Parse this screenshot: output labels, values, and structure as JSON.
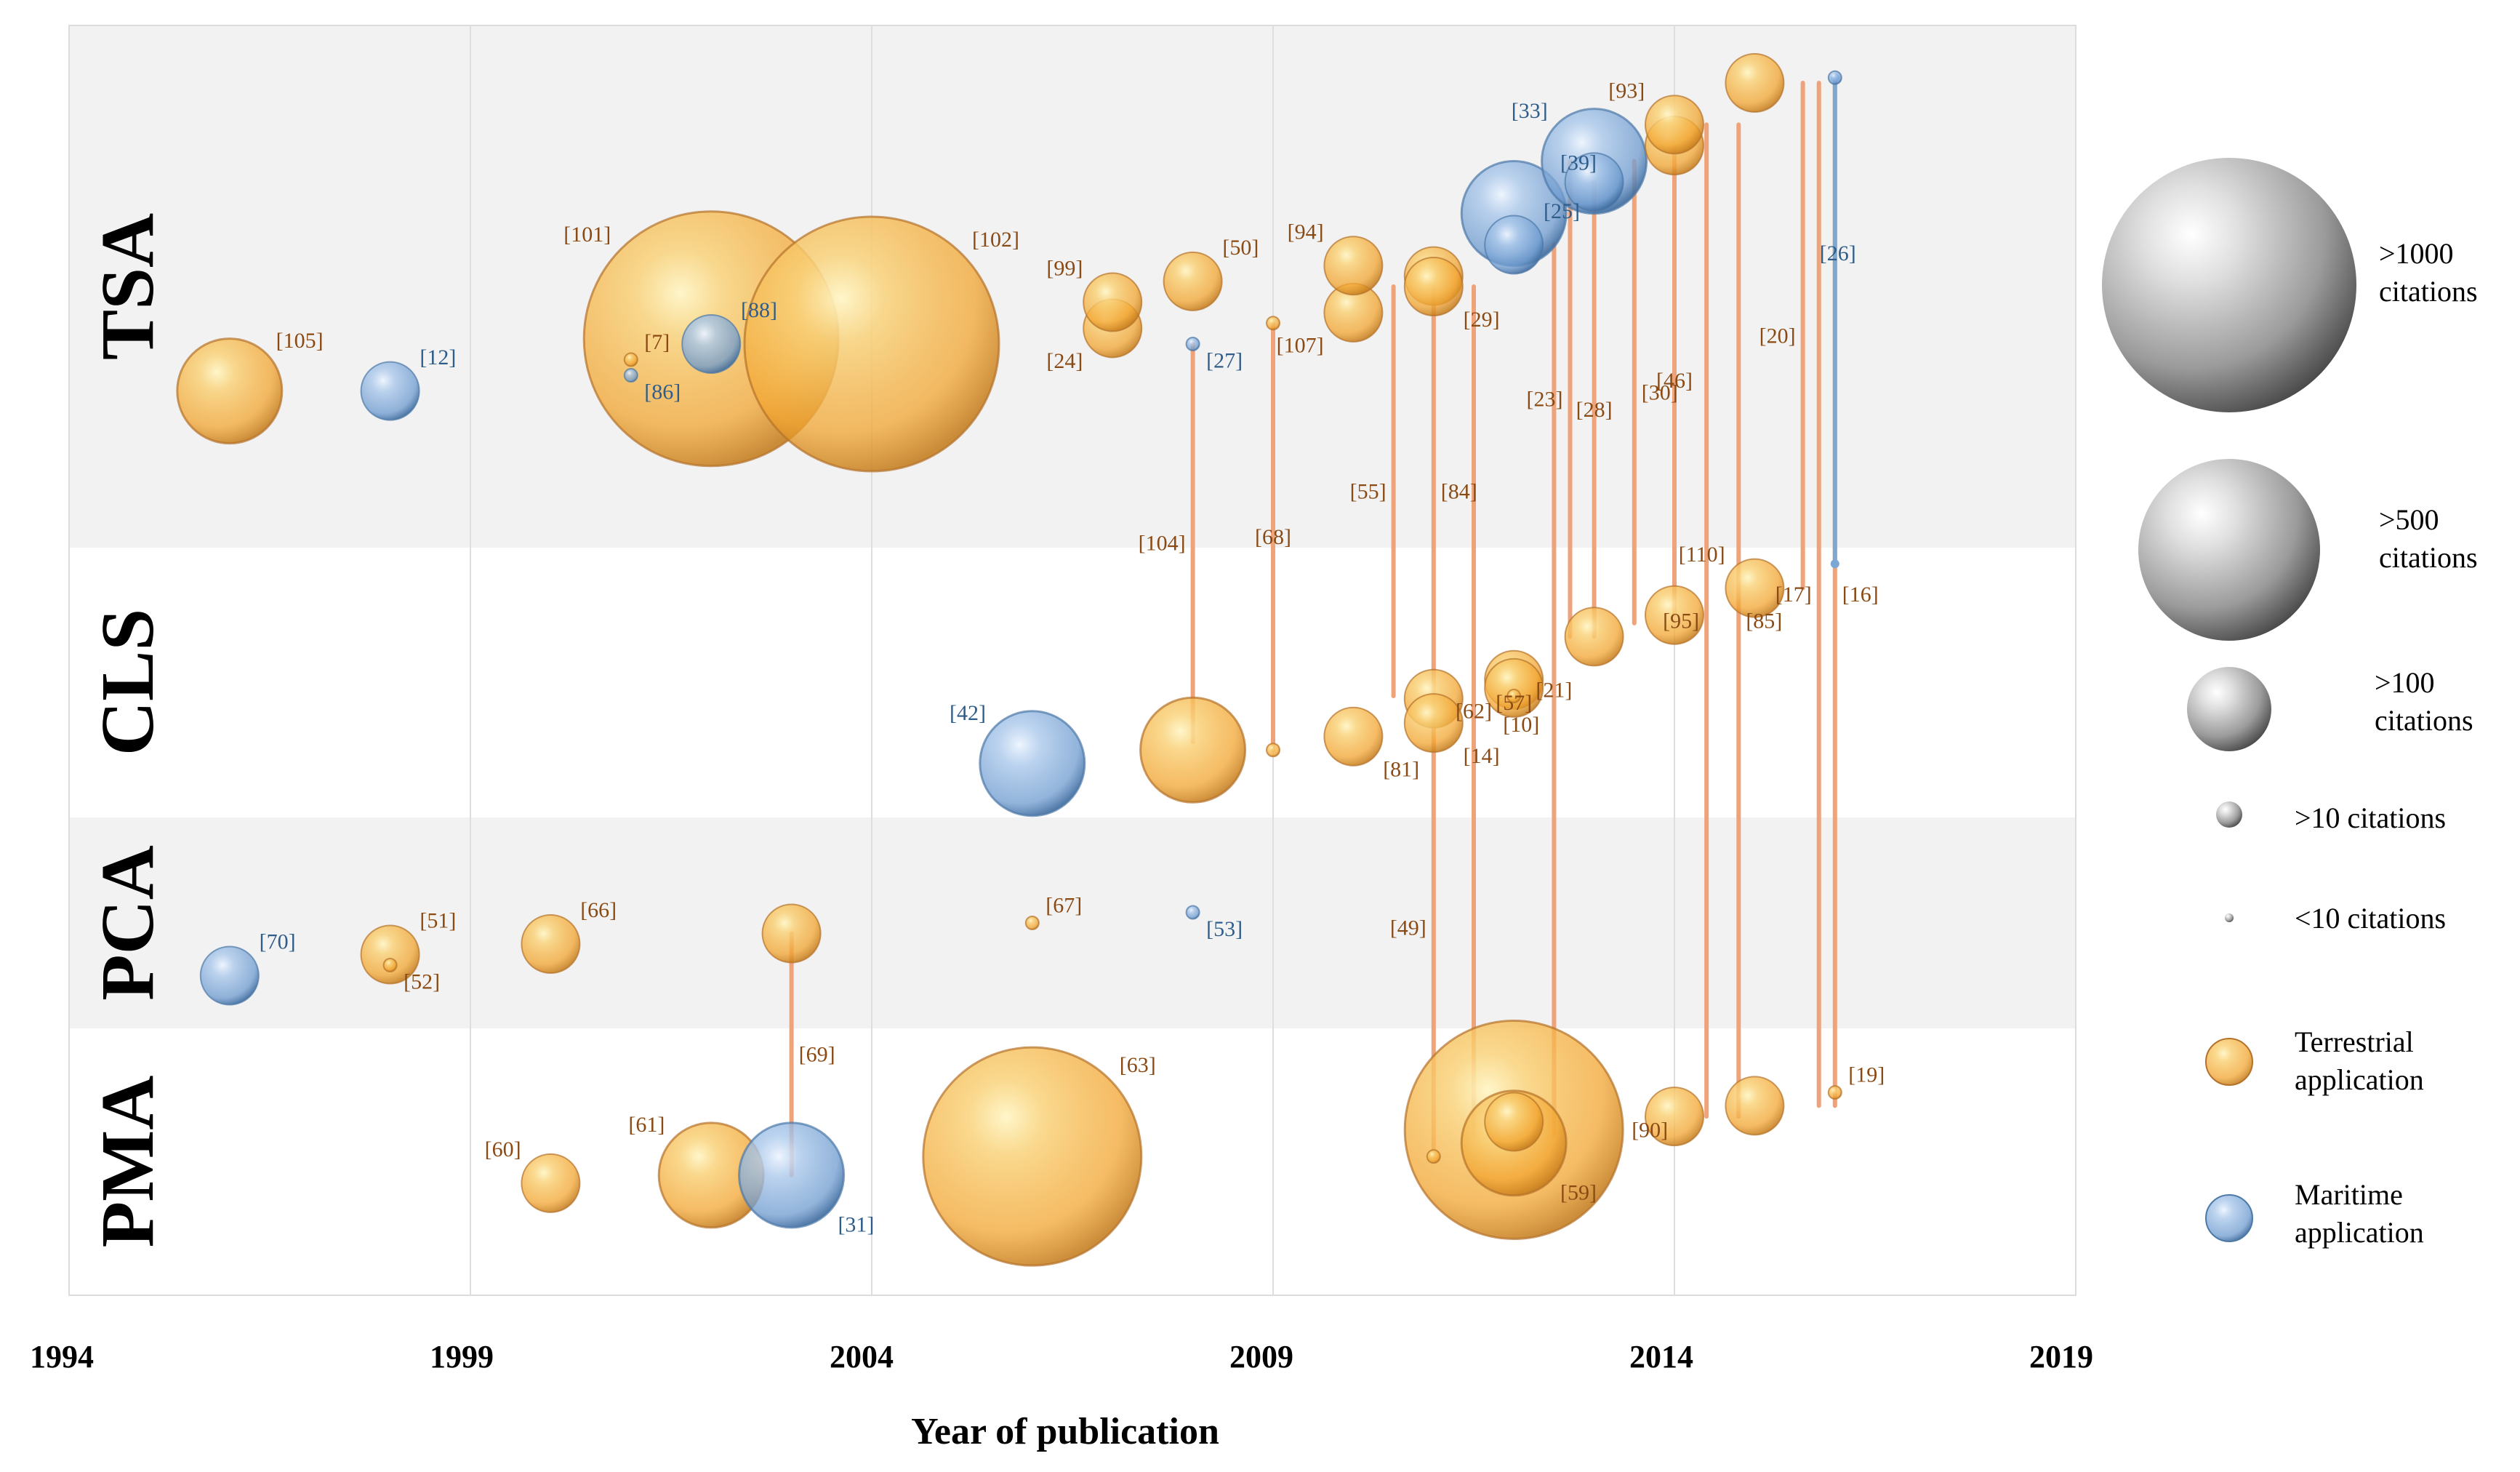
{
  "chart_data": {
    "type": "scatter",
    "subtype": "bubble",
    "xlabel": "Year of publication",
    "xlim": [
      1994,
      2019
    ],
    "x_ticks": [
      "1994",
      "1999",
      "2004",
      "2009",
      "2014",
      "2019"
    ],
    "categories": [
      "TSA",
      "CLS",
      "PCA",
      "PMA"
    ],
    "colors": {
      "terrestrial": "#f4a93a",
      "maritime": "#7ba7d4",
      "link_terrestrial": "#efa37a",
      "link_maritime": "#7fa8d0",
      "ref_terrestrial": "#8a4a14",
      "ref_maritime": "#2f5d8a"
    },
    "size_classes": {
      "huge": ">1000 citations",
      "large": ">500 citations",
      "medium": ">100 citations",
      "small": ">10 citations",
      "tiny": "<10 citations"
    },
    "points": [
      {
        "ref": "[105]",
        "year": 1996.0,
        "cat": "TSA",
        "off": 0.7,
        "size": "medium",
        "app": "terrestrial",
        "lab": "tr"
      },
      {
        "ref": "[12]",
        "year": 1998.0,
        "cat": "TSA",
        "off": 0.7,
        "size": "small",
        "app": "maritime",
        "lab": "tr"
      },
      {
        "ref": "[7]",
        "year": 2001.0,
        "cat": "TSA",
        "off": 0.64,
        "size": "tiny",
        "app": "terrestrial",
        "lab": "tr"
      },
      {
        "ref": "[86]",
        "year": 2001.0,
        "cat": "TSA",
        "off": 0.67,
        "size": "tiny",
        "app": "maritime",
        "lab": "br"
      },
      {
        "ref": "[101]",
        "year": 2002.0,
        "cat": "TSA",
        "off": 0.6,
        "size": "huge",
        "app": "terrestrial",
        "lab": "tl"
      },
      {
        "ref": "[88]",
        "year": 2002.0,
        "cat": "TSA",
        "off": 0.61,
        "size": "small",
        "app": "maritime",
        "lab": "tr"
      },
      {
        "ref": "[102]",
        "year": 2004.0,
        "cat": "TSA",
        "off": 0.61,
        "size": "huge",
        "app": "terrestrial",
        "lab": "tr"
      },
      {
        "ref": "[24]",
        "year": 2007.0,
        "cat": "TSA",
        "off": 0.58,
        "size": "small",
        "app": "terrestrial",
        "lab": "bl"
      },
      {
        "ref": "[99]",
        "year": 2007.0,
        "cat": "TSA",
        "off": 0.53,
        "size": "small",
        "app": "terrestrial",
        "lab": "tl"
      },
      {
        "ref": "[50]",
        "year": 2008.0,
        "cat": "TSA",
        "off": 0.49,
        "size": "small",
        "app": "terrestrial",
        "lab": "tr"
      },
      {
        "ref": "[27]",
        "year": 2008.0,
        "cat": "TSA",
        "off": 0.61,
        "size": "tiny",
        "app": "maritime",
        "lab": "br"
      },
      {
        "ref": "[107]",
        "year": 2010.0,
        "cat": "TSA",
        "off": 0.55,
        "size": "small",
        "app": "terrestrial",
        "lab": "bl"
      },
      {
        "ref": "[94]",
        "year": 2010.0,
        "cat": "TSA",
        "off": 0.46,
        "size": "small",
        "app": "terrestrial",
        "lab": "tl"
      },
      {
        "ref": "[29]",
        "year": 2011.0,
        "cat": "TSA",
        "off": 0.5,
        "size": "small",
        "app": "terrestrial",
        "lab": "br"
      },
      {
        "ref": "[39]",
        "year": 2012.0,
        "cat": "TSA",
        "off": 0.36,
        "size": "medium",
        "app": "maritime",
        "lab": "tr"
      },
      {
        "ref": "[25]",
        "year": 2012.0,
        "cat": "TSA",
        "off": 0.42,
        "size": "small",
        "app": "maritime",
        "lab": "tr"
      },
      {
        "ref": "[33]",
        "year": 2013.0,
        "cat": "TSA",
        "off": 0.26,
        "size": "medium",
        "app": "maritime",
        "lab": "tl"
      },
      {
        "ref": "[93]",
        "year": 2014.0,
        "cat": "TSA",
        "off": 0.19,
        "size": "small",
        "app": "terrestrial",
        "lab": "tl"
      },
      {
        "ref": "[26]",
        "year": 2016.0,
        "cat": "TSA",
        "off": 0.1,
        "size": "tiny",
        "app": "maritime",
        "lab": "rv"
      },
      {
        "ref": "[42]",
        "year": 2006.0,
        "cat": "CLS",
        "off": 0.8,
        "size": "medium",
        "app": "maritime",
        "lab": "tl"
      },
      {
        "ref": "[110]",
        "year": 2015.0,
        "cat": "CLS",
        "off": 0.15,
        "size": "small",
        "app": "terrestrial",
        "lab": "tl"
      },
      {
        "ref": "[14]",
        "year": 2011.0,
        "cat": "CLS",
        "off": 0.65,
        "size": "small",
        "app": "terrestrial",
        "lab": "br"
      },
      {
        "ref": "[57]",
        "year": 2012.0,
        "cat": "CLS",
        "off": 0.52,
        "size": "small",
        "app": "terrestrial",
        "lab": "in"
      },
      {
        "ref": "[10]",
        "year": 2012.0,
        "cat": "CLS",
        "off": 0.55,
        "size": "tiny",
        "app": "terrestrial",
        "lab": "bb"
      },
      {
        "ref": "[81]",
        "year": 2010.0,
        "cat": "CLS",
        "off": 0.7,
        "size": "small",
        "app": "terrestrial",
        "lab": "br"
      },
      {
        "ref": "[70]",
        "year": 1996.0,
        "cat": "PCA",
        "off": 0.75,
        "size": "small",
        "app": "maritime",
        "lab": "tr"
      },
      {
        "ref": "[51]",
        "year": 1998.0,
        "cat": "PCA",
        "off": 0.65,
        "size": "small",
        "app": "terrestrial",
        "lab": "tr"
      },
      {
        "ref": "[52]",
        "year": 1998.0,
        "cat": "PCA",
        "off": 0.7,
        "size": "tiny",
        "app": "terrestrial",
        "lab": "br"
      },
      {
        "ref": "[66]",
        "year": 2000.0,
        "cat": "PCA",
        "off": 0.6,
        "size": "small",
        "app": "terrestrial",
        "lab": "tr"
      },
      {
        "ref": "[67]",
        "year": 2006.0,
        "cat": "PCA",
        "off": 0.5,
        "size": "tiny",
        "app": "terrestrial",
        "lab": "tr"
      },
      {
        "ref": "[53]",
        "year": 2008.0,
        "cat": "PCA",
        "off": 0.45,
        "size": "tiny",
        "app": "maritime",
        "lab": "br"
      },
      {
        "ref": "[60]",
        "year": 2000.0,
        "cat": "PMA",
        "off": 0.58,
        "size": "small",
        "app": "terrestrial",
        "lab": "tl"
      },
      {
        "ref": "[61]",
        "year": 2002.0,
        "cat": "PMA",
        "off": 0.55,
        "size": "medium",
        "app": "terrestrial",
        "lab": "tl"
      },
      {
        "ref": "[31]",
        "year": 2003.0,
        "cat": "PMA",
        "off": 0.55,
        "size": "medium",
        "app": "maritime",
        "lab": "br"
      },
      {
        "ref": "[63]",
        "year": 2006.0,
        "cat": "PMA",
        "off": 0.48,
        "size": "large",
        "app": "terrestrial",
        "lab": "tr"
      },
      {
        "ref": "[90]",
        "year": 2012.0,
        "cat": "PMA",
        "off": 0.38,
        "size": "large",
        "app": "terrestrial",
        "lab": "r"
      },
      {
        "ref": "[59]",
        "year": 2012.0,
        "cat": "PMA",
        "off": 0.43,
        "size": "medium",
        "app": "terrestrial",
        "lab": "br"
      },
      {
        "ref": "[19]",
        "year": 2016.0,
        "cat": "PMA",
        "off": 0.24,
        "size": "tiny",
        "app": "terrestrial",
        "lab": "tr"
      }
    ],
    "extra_points": [
      {
        "year": 2003.0,
        "cat": "PCA",
        "off": 0.55,
        "size": "small",
        "app": "terrestrial"
      },
      {
        "year": 2008.0,
        "cat": "CLS",
        "off": 0.75,
        "size": "medium",
        "app": "terrestrial"
      },
      {
        "year": 2009.0,
        "cat": "TSA",
        "off": 0.57,
        "size": "tiny",
        "app": "terrestrial"
      },
      {
        "year": 2009.0,
        "cat": "CLS",
        "off": 0.75,
        "size": "tiny",
        "app": "terrestrial"
      },
      {
        "year": 2011.0,
        "cat": "TSA",
        "off": 0.48,
        "size": "small",
        "app": "terrestrial"
      },
      {
        "year": 2011.0,
        "cat": "CLS",
        "off": 0.56,
        "size": "small",
        "app": "terrestrial"
      },
      {
        "year": 2011.0,
        "cat": "PMA",
        "off": 0.48,
        "size": "tiny",
        "app": "terrestrial"
      },
      {
        "year": 2012.0,
        "cat": "CLS",
        "off": 0.49,
        "size": "small",
        "app": "terrestrial"
      },
      {
        "year": 2012.0,
        "cat": "PMA",
        "off": 0.35,
        "size": "small",
        "app": "terrestrial"
      },
      {
        "year": 2013.0,
        "cat": "TSA",
        "off": 0.3,
        "size": "small",
        "app": "maritime"
      },
      {
        "year": 2013.0,
        "cat": "CLS",
        "off": 0.33,
        "size": "small",
        "app": "terrestrial"
      },
      {
        "year": 2014.0,
        "cat": "TSA",
        "off": 0.23,
        "size": "small",
        "app": "terrestrial"
      },
      {
        "year": 2014.0,
        "cat": "CLS",
        "off": 0.25,
        "size": "small",
        "app": "terrestrial"
      },
      {
        "year": 2014.0,
        "cat": "PMA",
        "off": 0.33,
        "size": "small",
        "app": "terrestrial"
      },
      {
        "year": 2015.0,
        "cat": "TSA",
        "off": 0.11,
        "size": "small",
        "app": "terrestrial"
      },
      {
        "year": 2015.0,
        "cat": "PMA",
        "off": 0.29,
        "size": "small",
        "app": "terrestrial"
      }
    ],
    "links": [
      {
        "ref": "[104]",
        "year": 2008.0,
        "from": [
          "TSA",
          0.61
        ],
        "to": [
          "CLS",
          0.72
        ],
        "lab": "l"
      },
      {
        "ref": "[68]",
        "year": 2009.0,
        "from": [
          "TSA",
          0.57
        ],
        "to": [
          "CLS",
          0.75
        ],
        "lab": "c"
      },
      {
        "ref": "[69]",
        "year": 2003.0,
        "from": [
          "PCA",
          0.55
        ],
        "to": [
          "PMA",
          0.55
        ],
        "lab": "r"
      },
      {
        "ref": "[55]",
        "year": 2010.5,
        "from": [
          "TSA",
          0.5
        ],
        "to": [
          "CLS",
          0.55
        ],
        "lab": "l"
      },
      {
        "ref": "[84]",
        "year": 2011.0,
        "from": [
          "TSA",
          0.5
        ],
        "to": [
          "CLS",
          0.55
        ],
        "lab": "r"
      },
      {
        "ref": "[62]",
        "year": 2011.5,
        "from": [
          "TSA",
          0.5
        ],
        "to": [
          "PMA",
          0.4
        ],
        "lab": "c"
      },
      {
        "ref": "[49]",
        "year": 2011.0,
        "from": [
          "CLS",
          0.56
        ],
        "to": [
          "PMA",
          0.48
        ],
        "lab": "l"
      },
      {
        "ref": "[21]",
        "year": 2012.5,
        "from": [
          "TSA",
          0.42
        ],
        "to": [
          "PMA",
          0.4
        ],
        "lab": "c"
      },
      {
        "ref": "[23]",
        "year": 2012.7,
        "from": [
          "TSA",
          0.26
        ],
        "to": [
          "CLS",
          0.33
        ],
        "lab": "l"
      },
      {
        "ref": "[28]",
        "year": 2013.0,
        "from": [
          "TSA",
          0.3
        ],
        "to": [
          "CLS",
          0.33
        ],
        "lab": "c"
      },
      {
        "ref": "[30]",
        "year": 2013.5,
        "from": [
          "TSA",
          0.26
        ],
        "to": [
          "CLS",
          0.28
        ],
        "lab": "r"
      },
      {
        "ref": "[46]",
        "year": 2014.0,
        "from": [
          "TSA",
          0.23
        ],
        "to": [
          "CLS",
          0.25
        ],
        "lab": "c"
      },
      {
        "ref": "[85]",
        "year": 2014.8,
        "from": [
          "TSA",
          0.19
        ],
        "to": [
          "PMA",
          0.33
        ],
        "lab": "r"
      },
      {
        "ref": "[95]",
        "year": 2014.4,
        "from": [
          "TSA",
          0.19
        ],
        "to": [
          "PMA",
          0.33
        ],
        "lab": "l"
      },
      {
        "ref": "[20]",
        "year": 2015.6,
        "from": [
          "TSA",
          0.11
        ],
        "to": [
          "CLS",
          0.15
        ],
        "lab": "l"
      },
      {
        "ref": "[17]",
        "year": 2015.8,
        "from": [
          "TSA",
          0.11
        ],
        "to": [
          "PMA",
          0.29
        ],
        "lab": "l"
      },
      {
        "ref": "[16]",
        "year": 2016.0,
        "from": [
          "TSA",
          0.11
        ],
        "to": [
          "PMA",
          0.29
        ],
        "lab": "r"
      },
      {
        "ref": "[26]",
        "year": 2016.0,
        "from": [
          "TSA",
          0.1
        ],
        "to": [
          "CLS",
          0.06
        ],
        "lab": "none",
        "app": "maritime"
      }
    ],
    "legend": {
      "sizes": [
        {
          "key": "huge",
          "label_lines": [
            ">1000",
            "citations"
          ]
        },
        {
          "key": "large",
          "label_lines": [
            ">500",
            "citations"
          ]
        },
        {
          "key": "medium",
          "label_lines": [
            ">100",
            "citations"
          ]
        },
        {
          "key": "small",
          "label_lines": [
            ">10 citations"
          ]
        },
        {
          "key": "tiny",
          "label_lines": [
            "<10 citations"
          ]
        }
      ],
      "apps": [
        {
          "key": "terrestrial",
          "label_lines": [
            "Terrestrial",
            "application"
          ]
        },
        {
          "key": "maritime",
          "label_lines": [
            "Maritime",
            "application"
          ]
        }
      ]
    }
  }
}
